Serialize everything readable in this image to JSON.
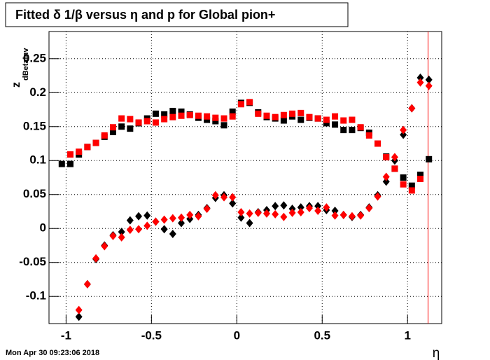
{
  "chart_data": {
    "type": "scatter",
    "title": "Fitted δ 1/β versus η and p for Global pion+",
    "x_label": "η",
    "y_label": {
      "main": "z",
      "sub": "dBetaInv"
    },
    "footer": "Mon Apr 30 09:23:06 2018",
    "xlim": [
      -1.1,
      1.2
    ],
    "ylim": [
      -0.14,
      0.29
    ],
    "xticks": [
      -1,
      -0.5,
      0,
      0.5,
      1
    ],
    "yticks": [
      -0.1,
      -0.05,
      0,
      0.05,
      0.1,
      0.15,
      0.2,
      0.25
    ],
    "grid": true,
    "vline": {
      "x": 1.12,
      "color": "#ff0000"
    },
    "x": [
      -1.025,
      -0.975,
      -0.925,
      -0.875,
      -0.825,
      -0.775,
      -0.725,
      -0.675,
      -0.625,
      -0.575,
      -0.525,
      -0.475,
      -0.425,
      -0.375,
      -0.325,
      -0.275,
      -0.225,
      -0.175,
      -0.125,
      -0.075,
      -0.025,
      0.025,
      0.075,
      0.125,
      0.175,
      0.225,
      0.275,
      0.325,
      0.375,
      0.425,
      0.475,
      0.525,
      0.575,
      0.625,
      0.675,
      0.725,
      0.775,
      0.825,
      0.875,
      0.925,
      0.975,
      1.025,
      1.075,
      1.125
    ],
    "series": [
      {
        "marker": "square",
        "color": "#000000",
        "values": [
          0.095,
          0.095,
          0.109,
          0.12,
          0.126,
          0.135,
          0.142,
          0.15,
          0.147,
          0.155,
          0.162,
          0.169,
          0.168,
          0.173,
          0.172,
          0.168,
          0.163,
          0.16,
          0.158,
          0.152,
          0.172,
          0.185,
          0.185,
          0.171,
          0.164,
          0.162,
          0.159,
          0.165,
          0.16,
          0.163,
          0.162,
          0.155,
          0.153,
          0.145,
          0.145,
          0.148,
          0.141,
          0.125,
          0.106,
          0.088,
          0.075,
          0.063,
          0.079,
          0.102
        ]
      },
      {
        "marker": "square",
        "color": "#ff0000",
        "values": [
          null,
          0.109,
          0.113,
          0.12,
          0.126,
          0.137,
          0.149,
          0.162,
          0.161,
          0.156,
          0.158,
          0.156,
          0.161,
          0.164,
          0.166,
          0.167,
          0.166,
          0.165,
          0.163,
          0.162,
          0.165,
          0.183,
          0.186,
          0.169,
          0.166,
          0.164,
          0.167,
          0.169,
          0.17,
          0.164,
          0.162,
          0.16,
          0.165,
          0.159,
          0.16,
          0.149,
          0.137,
          0.125,
          0.105,
          0.088,
          0.065,
          0.056,
          0.073,
          null
        ]
      },
      {
        "marker": "diamond",
        "color": "#000000",
        "values": [
          null,
          null,
          -0.13,
          -0.082,
          -0.045,
          -0.025,
          -0.01,
          -0.005,
          0.012,
          0.018,
          0.019,
          0.01,
          -0.001,
          -0.008,
          0.008,
          0.014,
          0.02,
          0.03,
          0.045,
          0.049,
          0.037,
          0.016,
          0.008,
          0.024,
          0.027,
          0.033,
          0.034,
          0.029,
          0.031,
          0.033,
          0.033,
          0.027,
          0.026,
          0.02,
          0.017,
          0.02,
          0.031,
          0.049,
          0.069,
          0.1,
          0.138,
          0.177,
          0.222,
          0.219
        ]
      },
      {
        "marker": "diamond",
        "color": "#ff0000",
        "values": [
          null,
          null,
          -0.12,
          -0.082,
          -0.044,
          -0.026,
          -0.011,
          -0.013,
          -0.002,
          -0.001,
          0.004,
          0.01,
          0.013,
          0.015,
          0.016,
          0.02,
          0.018,
          0.029,
          0.049,
          0.046,
          0.046,
          0.024,
          0.022,
          0.023,
          0.022,
          0.021,
          0.017,
          0.023,
          0.024,
          0.03,
          0.026,
          0.031,
          0.019,
          0.02,
          0.018,
          0.019,
          0.03,
          0.047,
          0.076,
          0.105,
          0.145,
          0.177,
          0.215,
          0.21
        ]
      }
    ]
  }
}
